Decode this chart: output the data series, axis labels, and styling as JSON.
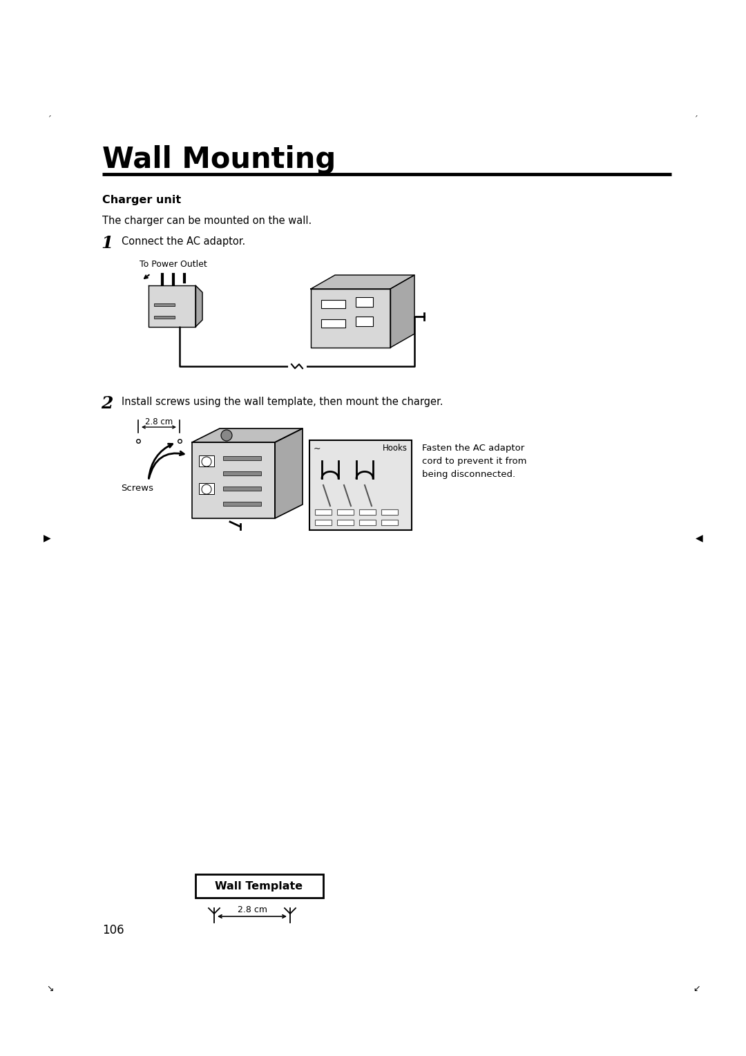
{
  "title": "Wall Mounting",
  "charger_unit_label": "Charger unit",
  "intro_text": "The charger can be mounted on the wall.",
  "step1_num": "1",
  "step1_text": "Connect the AC adaptor.",
  "step2_num": "2",
  "step2_text": "Install screws using the wall template, then mount the charger.",
  "label_power_outlet": "To Power Outlet",
  "label_screws": "Screws",
  "label_hooks": "Hooks",
  "fasten_text": "Fasten the AC adaptor\ncord to prevent it from\nbeing disconnected.",
  "wall_template_label": "Wall Template",
  "page_number": "106",
  "dim_text": "2.8 cm",
  "dim_text2": "— 2.8 cm—",
  "bg_color": "#ffffff",
  "text_color": "#000000",
  "gray1": "#c0c0c0",
  "gray2": "#a8a8a8",
  "gray3": "#d8d8d8",
  "gray4": "#888888"
}
